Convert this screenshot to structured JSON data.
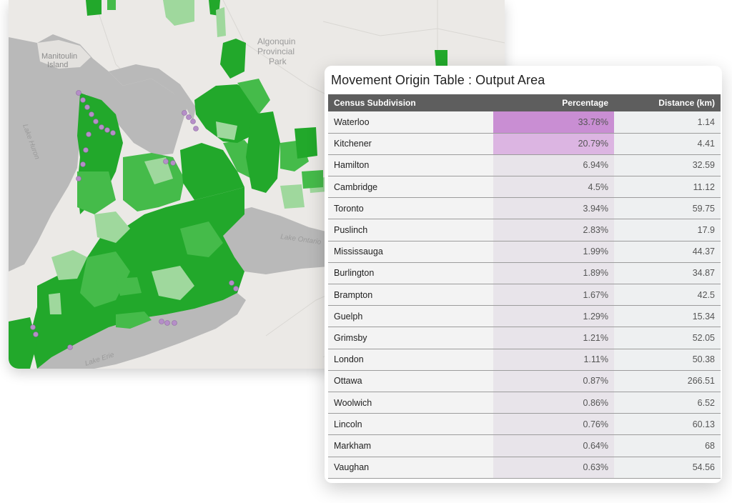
{
  "map": {
    "labels": {
      "manitoulin": "Manitoulin Island",
      "manitoulin_l1": "Manitoulin",
      "manitoulin_l2": "Island",
      "algonquin_l1": "Algonquin",
      "algonquin_l2": "Provincial",
      "algonquin_l3": "Park",
      "lake_huron": "Lake Huron",
      "lake_ontario": "Lake Ontario",
      "lake_erie": "Lake Erie"
    },
    "colors": {
      "land": "#ebe9e6",
      "water": "#b7b7b7",
      "green_dark": "#22a82b",
      "green_mid": "#45bb4a",
      "green_light": "#9fd89d",
      "marker": "#b58ec8"
    }
  },
  "table": {
    "title": "Movement Origin Table : Output Area",
    "headers": {
      "col1": "Census Subdivision",
      "col2": "Percentage",
      "col3": "Distance (km)"
    },
    "highlight_colors": {
      "strong": "#c98ed3",
      "light": "#dcb5e2"
    },
    "rows": [
      {
        "name": "Waterloo",
        "pct": "33.78%",
        "dist": "1.14"
      },
      {
        "name": "Kitchener",
        "pct": "20.79%",
        "dist": "4.41"
      },
      {
        "name": "Hamilton",
        "pct": "6.94%",
        "dist": "32.59"
      },
      {
        "name": "Cambridge",
        "pct": "4.5%",
        "dist": "11.12"
      },
      {
        "name": "Toronto",
        "pct": "3.94%",
        "dist": "59.75"
      },
      {
        "name": "Puslinch",
        "pct": "2.83%",
        "dist": "17.9"
      },
      {
        "name": "Mississauga",
        "pct": "1.99%",
        "dist": "44.37"
      },
      {
        "name": "Burlington",
        "pct": "1.89%",
        "dist": "34.87"
      },
      {
        "name": "Brampton",
        "pct": "1.67%",
        "dist": "42.5"
      },
      {
        "name": "Guelph",
        "pct": "1.29%",
        "dist": "15.34"
      },
      {
        "name": "Grimsby",
        "pct": "1.21%",
        "dist": "52.05"
      },
      {
        "name": "London",
        "pct": "1.11%",
        "dist": "50.38"
      },
      {
        "name": "Ottawa",
        "pct": "0.87%",
        "dist": "266.51"
      },
      {
        "name": "Woolwich",
        "pct": "0.86%",
        "dist": "6.52"
      },
      {
        "name": "Lincoln",
        "pct": "0.76%",
        "dist": "60.13"
      },
      {
        "name": "Markham",
        "pct": "0.64%",
        "dist": "68"
      },
      {
        "name": "Vaughan",
        "pct": "0.63%",
        "dist": "54.56"
      }
    ]
  }
}
